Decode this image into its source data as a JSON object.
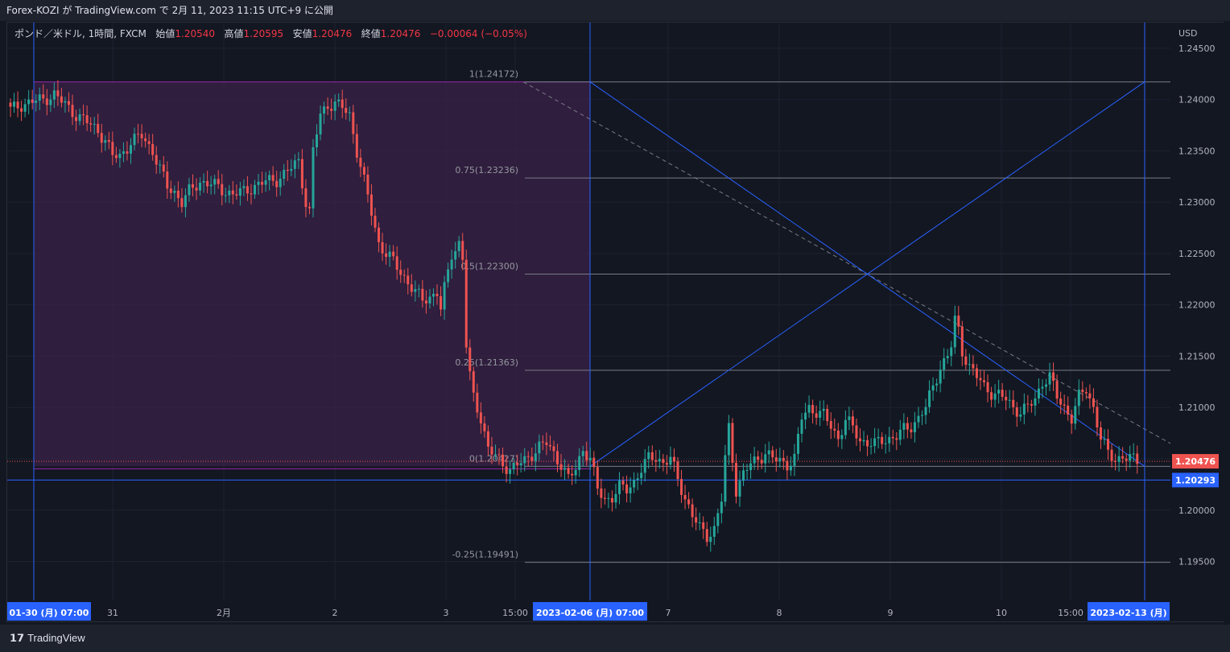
{
  "header": {
    "published_text": "Forex-KOZI が TradingView.com で 2月 11, 2023 11:15 UTC+9 に公開"
  },
  "legend": {
    "symbol": "ポンド／米ドル, 1時間, FXCM",
    "open_label": "始値",
    "open": "1.20540",
    "high_label": "高値",
    "high": "1.20595",
    "low_label": "安値",
    "low": "1.20476",
    "close_label": "終値",
    "close": "1.20476",
    "change": "−0.00064 (−0.05%)"
  },
  "footer": {
    "brand": "TradingView",
    "brand_icon": "tradingview-logo-icon"
  },
  "colors": {
    "background": "#131722",
    "up": "#26a69a",
    "down": "#ef5350",
    "fib_zone": "#3a2147",
    "fib_border": "#9c27b0",
    "trendline": "#2962ff",
    "grid": "#1e2230"
  },
  "chart_data": {
    "type": "candlestick",
    "symbol": "GBPUSD",
    "timeframe": "1時間",
    "currency_label": "USD",
    "y_ticks": [
      1.245,
      1.24,
      1.235,
      1.23,
      1.225,
      1.22,
      1.215,
      1.21,
      1.205,
      1.2,
      1.195
    ],
    "y_tick_labels": [
      "1.24500",
      "1.24000",
      "1.23500",
      "1.23000",
      "1.22500",
      "1.22000",
      "1.21500",
      "1.21000",
      "1.20500",
      "1.20000",
      "1.19500"
    ],
    "ylim": [
      1.1912,
      1.2475
    ],
    "x_tick_labels": [
      "31",
      "2月",
      "2",
      "3",
      "15:00",
      "7",
      "8",
      "9",
      "10",
      "15:00"
    ],
    "x_highlight_labels": [
      "01-30 (月)   07:00",
      "2023-02-06 (月)   07:00",
      "2023-02-13 (月)"
    ],
    "last_price_label": "1.20476",
    "horizontal_line_label": "1.20293",
    "horizontal_line_value": 1.20293,
    "fib_levels": [
      {
        "label": "1(1.24172)",
        "value": 1.24172
      },
      {
        "label": "0.75(1.23236)",
        "value": 1.23236
      },
      {
        "label": "0.5(1.22300)",
        "value": 1.223
      },
      {
        "label": "0.25(1.21363)",
        "value": 1.21363
      },
      {
        "label": "0(1.20427)",
        "value": 1.20427
      },
      {
        "label": "-0.25(1.19491)",
        "value": 1.19491
      }
    ],
    "trend_lines": [
      {
        "from": [
          "2023-02-06 07:00",
          1.24172
        ],
        "to": [
          "2023-02-13 07:00",
          1.20427
        ]
      },
      {
        "from": [
          "2023-02-06 07:00",
          1.20427
        ],
        "to": [
          "2023-02-13 07:00",
          1.24172
        ]
      }
    ],
    "vertical_markers": [
      "2023-01-30 07:00",
      "2023-02-06 07:00",
      "2023-02-13"
    ],
    "close_path": [
      [
        0,
        1.239
      ],
      [
        3,
        1.2395
      ],
      [
        6,
        1.2398
      ],
      [
        9,
        1.24
      ],
      [
        12,
        1.2405
      ],
      [
        15,
        1.2395
      ],
      [
        18,
        1.2385
      ],
      [
        21,
        1.2378
      ],
      [
        24,
        1.237
      ],
      [
        26,
        1.236
      ],
      [
        28,
        1.2345
      ],
      [
        30,
        1.2345
      ],
      [
        33,
        1.2358
      ],
      [
        36,
        1.2365
      ],
      [
        39,
        1.235
      ],
      [
        41,
        1.2332
      ],
      [
        43,
        1.2315
      ],
      [
        45,
        1.231
      ],
      [
        47,
        1.23
      ],
      [
        49,
        1.231
      ],
      [
        52,
        1.232
      ],
      [
        55,
        1.2318
      ],
      [
        58,
        1.2312
      ],
      [
        61,
        1.2308
      ],
      [
        64,
        1.231
      ],
      [
        67,
        1.2316
      ],
      [
        70,
        1.232
      ],
      [
        73,
        1.2322
      ],
      [
        76,
        1.233
      ],
      [
        79,
        1.234
      ],
      [
        81,
        1.23
      ],
      [
        82,
        1.229
      ],
      [
        83,
        1.235
      ],
      [
        85,
        1.2385
      ],
      [
        87,
        1.2395
      ],
      [
        89,
        1.2396
      ],
      [
        91,
        1.2392
      ],
      [
        93,
        1.2385
      ],
      [
        95,
        1.235
      ],
      [
        97,
        1.232
      ],
      [
        99,
        1.229
      ],
      [
        101,
        1.226
      ],
      [
        103,
        1.225
      ],
      [
        105,
        1.2242
      ],
      [
        107,
        1.2232
      ],
      [
        109,
        1.2222
      ],
      [
        111,
        1.2212
      ],
      [
        113,
        1.2205
      ],
      [
        115,
        1.2208
      ],
      [
        117,
        1.2212
      ],
      [
        118,
        1.2195
      ],
      [
        119,
        1.2215
      ],
      [
        121,
        1.225
      ],
      [
        123,
        1.226
      ],
      [
        124,
        1.2245
      ],
      [
        125,
        1.216
      ],
      [
        126,
        1.213
      ],
      [
        127,
        1.211
      ],
      [
        129,
        1.209
      ],
      [
        131,
        1.206
      ],
      [
        133,
        1.2052
      ],
      [
        135,
        1.2045
      ],
      [
        137,
        1.204
      ],
      [
        139,
        1.2044
      ],
      [
        141,
        1.2048
      ],
      [
        143,
        1.2055
      ],
      [
        145,
        1.2062
      ],
      [
        147,
        1.2065
      ],
      [
        149,
        1.2055
      ],
      [
        151,
        1.2045
      ],
      [
        153,
        1.203
      ],
      [
        155,
        1.204
      ],
      [
        157,
        1.206
      ],
      [
        159,
        1.205
      ],
      [
        161,
        1.202
      ],
      [
        163,
        1.201
      ],
      [
        165,
        1.2013
      ],
      [
        167,
        1.2022
      ],
      [
        169,
        1.202
      ],
      [
        171,
        1.2028
      ],
      [
        173,
        1.204
      ],
      [
        175,
        1.205
      ],
      [
        177,
        1.2052
      ],
      [
        179,
        1.2046
      ],
      [
        181,
        1.205
      ],
      [
        183,
        1.203
      ],
      [
        185,
        1.2012
      ],
      [
        187,
        1.1995
      ],
      [
        189,
        1.1982
      ],
      [
        191,
        1.1975
      ],
      [
        193,
        1.1982
      ],
      [
        195,
        1.201
      ],
      [
        196,
        1.205
      ],
      [
        197,
        1.208
      ],
      [
        199,
        1.202
      ],
      [
        201,
        1.2035
      ],
      [
        203,
        1.2045
      ],
      [
        205,
        1.205
      ],
      [
        207,
        1.2056
      ],
      [
        209,
        1.205
      ],
      [
        211,
        1.2048
      ],
      [
        213,
        1.2045
      ],
      [
        215,
        1.205
      ],
      [
        217,
        1.209
      ],
      [
        219,
        1.21
      ],
      [
        221,
        1.2096
      ],
      [
        223,
        1.2092
      ],
      [
        225,
        1.2082
      ],
      [
        227,
        1.207
      ],
      [
        229,
        1.2088
      ],
      [
        231,
        1.208
      ],
      [
        233,
        1.2068
      ],
      [
        235,
        1.2066
      ],
      [
        237,
        1.2064
      ],
      [
        239,
        1.2068
      ],
      [
        241,
        1.207
      ],
      [
        243,
        1.2072
      ],
      [
        245,
        1.2078
      ],
      [
        247,
        1.2082
      ],
      [
        249,
        1.209
      ],
      [
        251,
        1.21
      ],
      [
        253,
        1.212
      ],
      [
        255,
        1.214
      ],
      [
        257,
        1.215
      ],
      [
        258,
        1.216
      ],
      [
        259,
        1.2185
      ],
      [
        260,
        1.2175
      ],
      [
        261,
        1.2155
      ],
      [
        263,
        1.214
      ],
      [
        265,
        1.213
      ],
      [
        267,
        1.212
      ],
      [
        269,
        1.2115
      ],
      [
        271,
        1.2112
      ],
      [
        273,
        1.2108
      ],
      [
        275,
        1.21
      ],
      [
        277,
        1.2096
      ],
      [
        279,
        1.21
      ],
      [
        281,
        1.2108
      ],
      [
        283,
        1.2125
      ],
      [
        285,
        1.213
      ],
      [
        287,
        1.211
      ],
      [
        289,
        1.21
      ],
      [
        291,
        1.209
      ],
      [
        293,
        1.211
      ],
      [
        295,
        1.2118
      ],
      [
        297,
        1.21
      ],
      [
        299,
        1.207
      ],
      [
        301,
        1.2055
      ],
      [
        303,
        1.205
      ],
      [
        305,
        1.2052
      ],
      [
        307,
        1.205
      ],
      [
        309,
        1.2048
      ]
    ]
  }
}
